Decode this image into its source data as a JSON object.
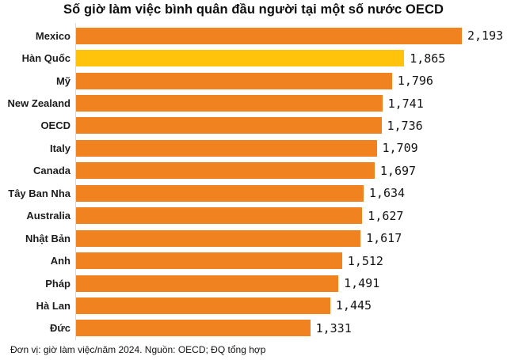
{
  "title": "Số giờ làm việc bình quân đầu người tại một số nước OECD",
  "footer": "Đơn vị: giờ làm việc/năm 2024. Nguồn: OECD; ĐQ tổng hợp",
  "chart_data": {
    "type": "bar",
    "orientation": "horizontal",
    "title": "Số giờ làm việc bình quân đầu người tại một số nước OECD",
    "xlabel": "",
    "ylabel": "",
    "xlim": [
      0,
      2250
    ],
    "grid": false,
    "legend": false,
    "categories": [
      "Mexico",
      "Hàn Quốc",
      "Mỹ",
      "New Zealand",
      "OECD",
      "Italy",
      "Canada",
      "Tây Ban Nha",
      "Australia",
      "Nhật Bản",
      "Anh",
      "Pháp",
      "Hà Lan",
      "Đức"
    ],
    "values": [
      2193,
      1865,
      1796,
      1741,
      1736,
      1709,
      1697,
      1634,
      1627,
      1617,
      1512,
      1491,
      1445,
      1331
    ],
    "value_labels": [
      "2,193",
      "1,865",
      "1,796",
      "1,741",
      "1,736",
      "1,709",
      "1,697",
      "1,634",
      "1,627",
      "1,617",
      "1,512",
      "1,491",
      "1,445",
      "1,331"
    ],
    "highlight_index": 1,
    "bar_color": "#f0831f",
    "highlight_color": "#ffc30b",
    "axis_line_color": "#d9d9d9",
    "unit_note": "giờ làm việc/năm 2024",
    "source_note": "OECD; ĐQ tổng hợp"
  }
}
